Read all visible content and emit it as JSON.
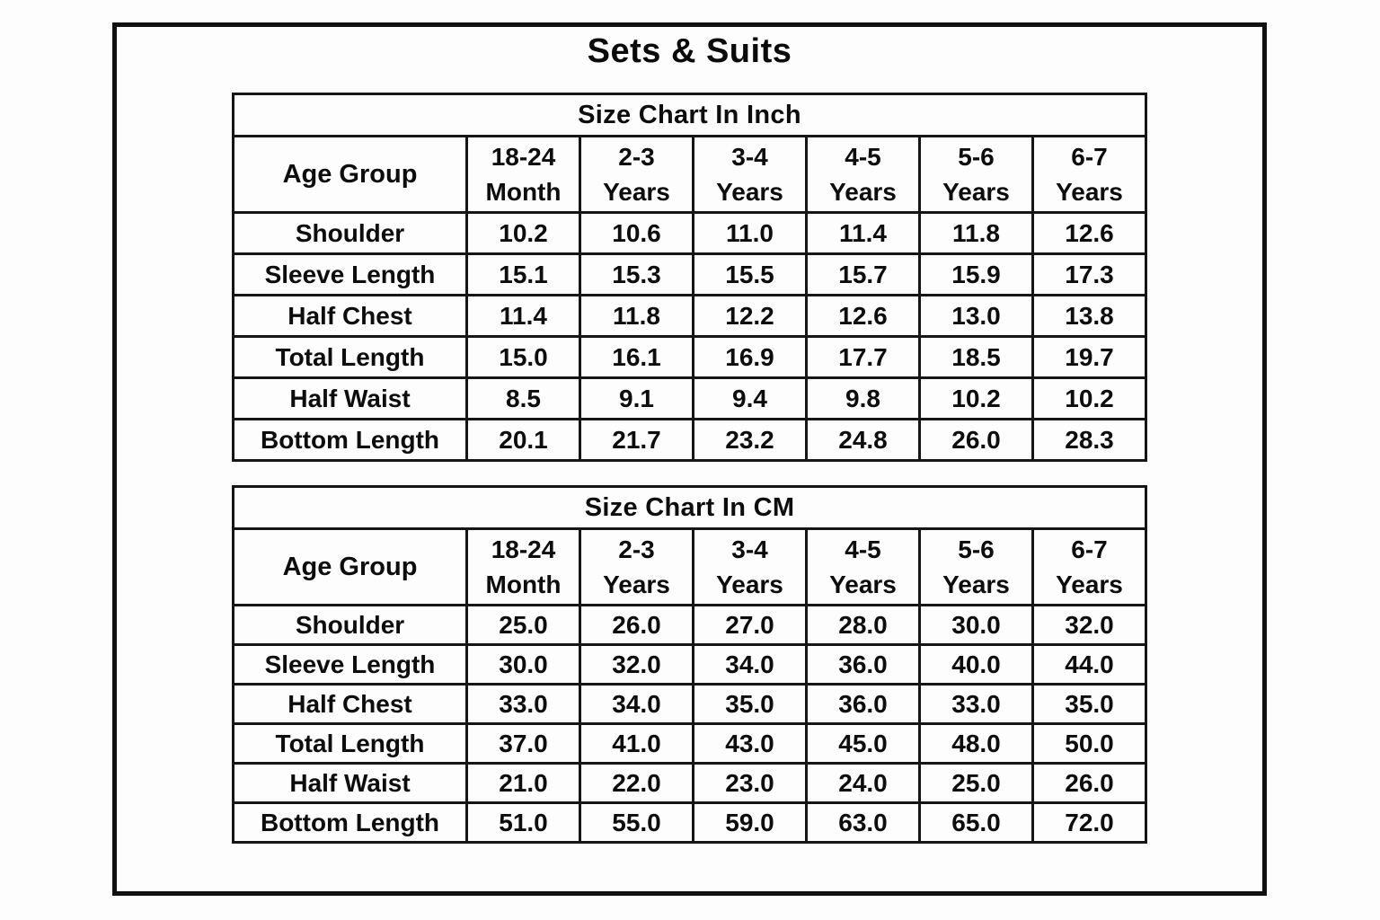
{
  "page": {
    "title": "Sets & Suits"
  },
  "colors": {
    "text": "#0d0d0d",
    "border": "#161616",
    "background": "#fdfdfd",
    "frame_border": "#111111"
  },
  "tables": [
    {
      "id": "inch",
      "title": "Size Chart In Inch",
      "corner_header": "Age Group",
      "columns": [
        [
          "18-24",
          "Month"
        ],
        [
          "2-3",
          "Years"
        ],
        [
          "3-4",
          "Years"
        ],
        [
          "4-5",
          "Years"
        ],
        [
          "5-6",
          "Years"
        ],
        [
          "6-7",
          "Years"
        ]
      ],
      "rows": [
        {
          "label": "Shoulder",
          "values": [
            "10.2",
            "10.6",
            "11.0",
            "11.4",
            "11.8",
            "12.6"
          ]
        },
        {
          "label": "Sleeve Length",
          "values": [
            "15.1",
            "15.3",
            "15.5",
            "15.7",
            "15.9",
            "17.3"
          ]
        },
        {
          "label": "Half Chest",
          "values": [
            "11.4",
            "11.8",
            "12.2",
            "12.6",
            "13.0",
            "13.8"
          ]
        },
        {
          "label": "Total Length",
          "values": [
            "15.0",
            "16.1",
            "16.9",
            "17.7",
            "18.5",
            "19.7"
          ]
        },
        {
          "label": "Half Waist",
          "values": [
            "8.5",
            "9.1",
            "9.4",
            "9.8",
            "10.2",
            "10.2"
          ]
        },
        {
          "label": "Bottom Length",
          "values": [
            "20.1",
            "21.7",
            "23.2",
            "24.8",
            "26.0",
            "28.3"
          ]
        }
      ]
    },
    {
      "id": "cm",
      "title": "Size Chart In CM",
      "corner_header": "Age Group",
      "columns": [
        [
          "18-24",
          "Month"
        ],
        [
          "2-3",
          "Years"
        ],
        [
          "3-4",
          "Years"
        ],
        [
          "4-5",
          "Years"
        ],
        [
          "5-6",
          "Years"
        ],
        [
          "6-7",
          "Years"
        ]
      ],
      "rows": [
        {
          "label": "Shoulder",
          "values": [
            "25.0",
            "26.0",
            "27.0",
            "28.0",
            "30.0",
            "32.0"
          ]
        },
        {
          "label": "Sleeve Length",
          "values": [
            "30.0",
            "32.0",
            "34.0",
            "36.0",
            "40.0",
            "44.0"
          ]
        },
        {
          "label": "Half Chest",
          "values": [
            "33.0",
            "34.0",
            "35.0",
            "36.0",
            "33.0",
            "35.0"
          ]
        },
        {
          "label": "Total Length",
          "values": [
            "37.0",
            "41.0",
            "43.0",
            "45.0",
            "48.0",
            "50.0"
          ]
        },
        {
          "label": "Half Waist",
          "values": [
            "21.0",
            "22.0",
            "23.0",
            "24.0",
            "25.0",
            "26.0"
          ]
        },
        {
          "label": "Bottom Length",
          "values": [
            "51.0",
            "55.0",
            "59.0",
            "63.0",
            "65.0",
            "72.0"
          ]
        }
      ]
    }
  ]
}
